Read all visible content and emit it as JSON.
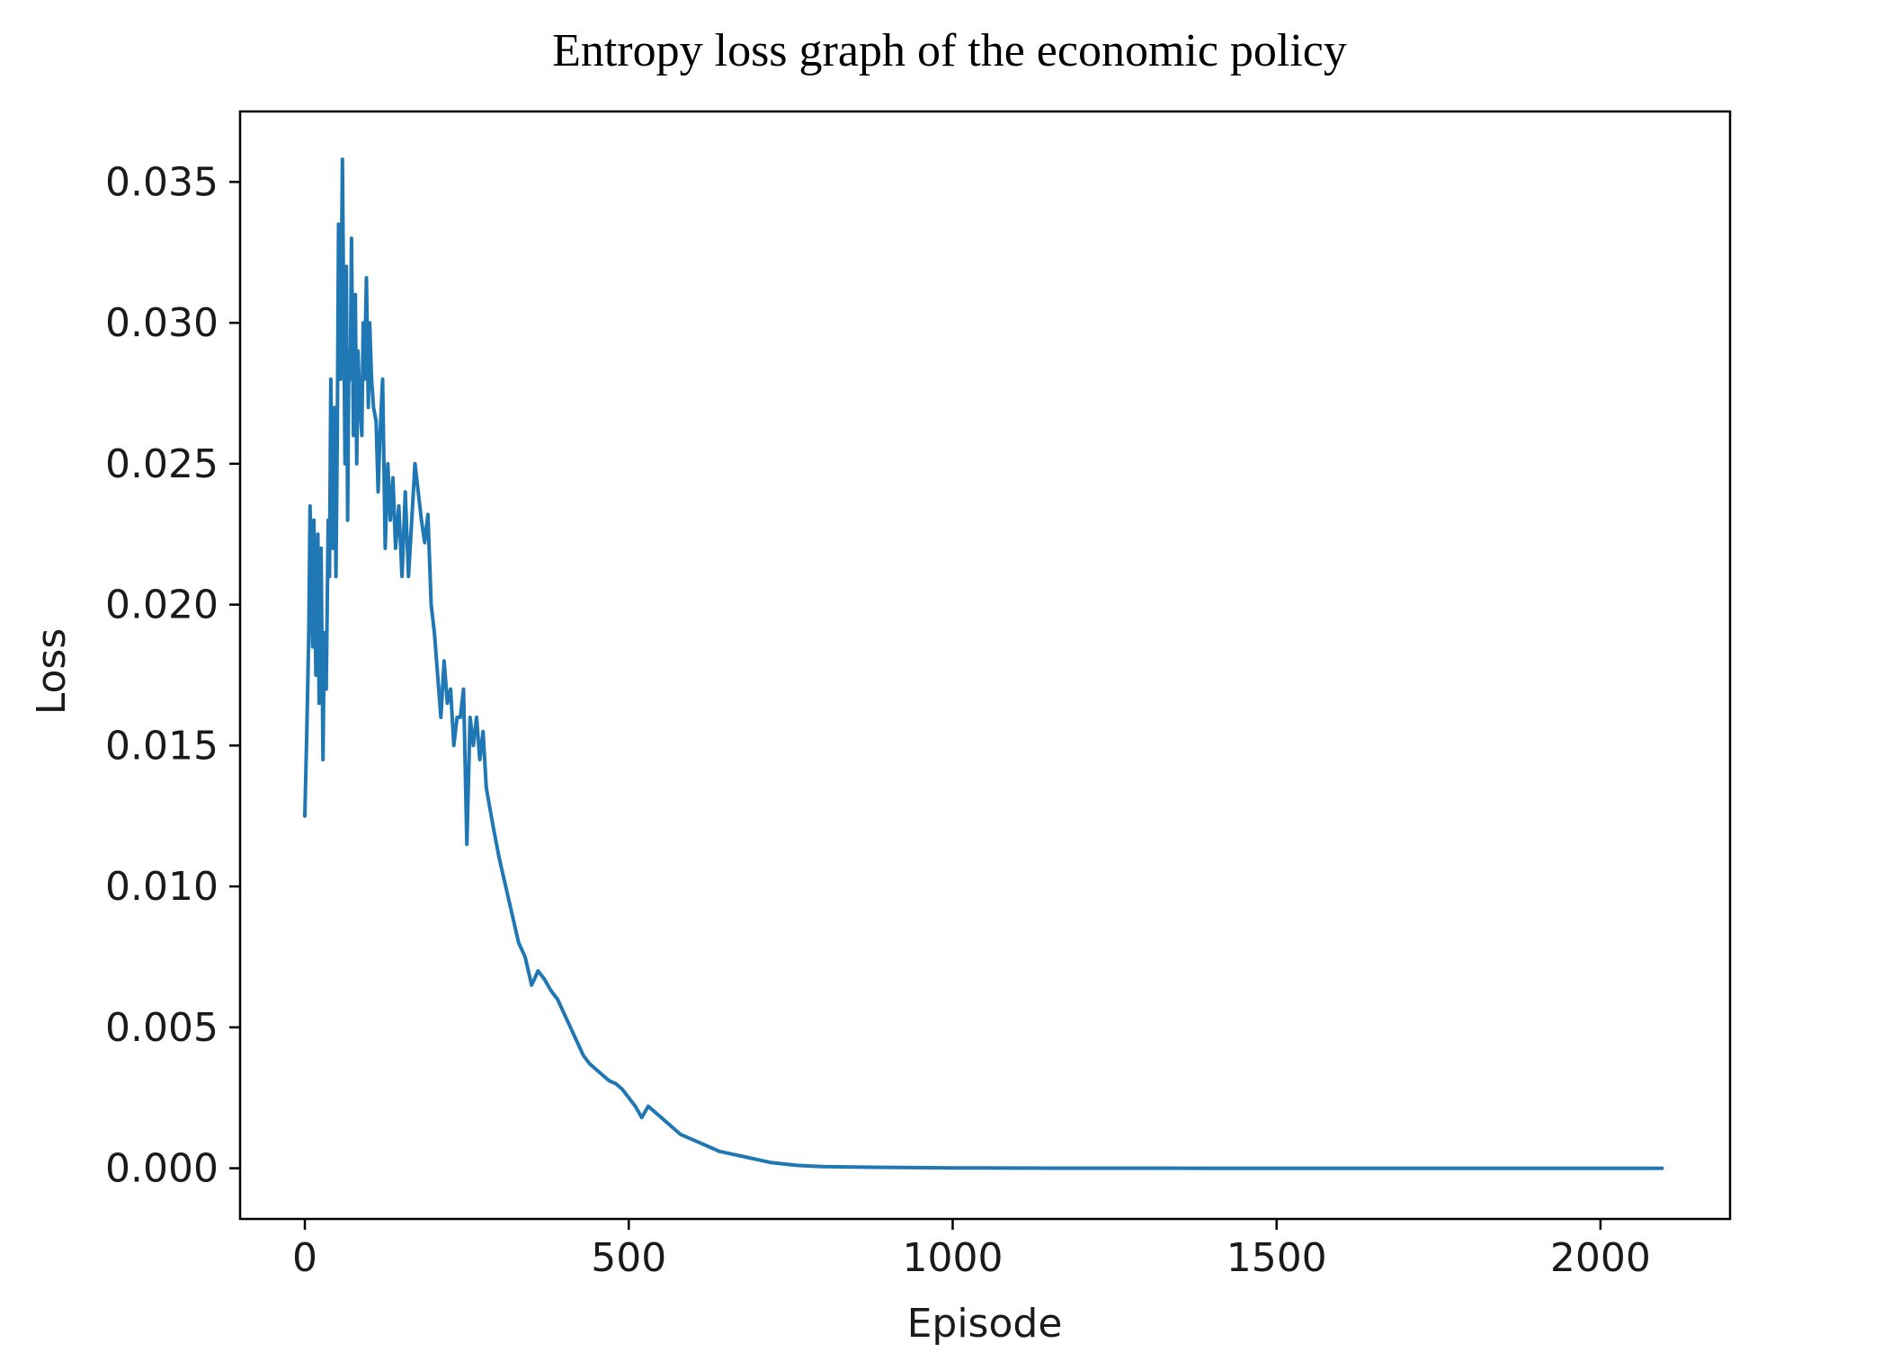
{
  "chart_data": {
    "type": "line",
    "title": "Entropy loss graph of the economic policy",
    "xlabel": "Episode",
    "ylabel": "Loss",
    "xlim": [
      -100,
      2200
    ],
    "ylim": [
      -0.0018,
      0.0375
    ],
    "xticks": [
      0,
      500,
      1000,
      1500,
      2000
    ],
    "yticks": [
      0.0,
      0.005,
      0.01,
      0.015,
      0.02,
      0.025,
      0.03,
      0.035
    ],
    "xtick_labels": [
      "0",
      "500",
      "1000",
      "1500",
      "2000"
    ],
    "ytick_labels": [
      "0.000",
      "0.005",
      "0.010",
      "0.015",
      "0.020",
      "0.025",
      "0.030",
      "0.035"
    ],
    "grid": false,
    "line_color": "#1f77b4",
    "series": [
      {
        "x": [
          0,
          3,
          6,
          8,
          10,
          12,
          14,
          17,
          20,
          22,
          25,
          28,
          30,
          33,
          36,
          38,
          40,
          43,
          46,
          48,
          50,
          52,
          55,
          58,
          60,
          62,
          64,
          66,
          68,
          70,
          72,
          75,
          78,
          80,
          82,
          85,
          88,
          90,
          92,
          95,
          98,
          100,
          103,
          106,
          110,
          113,
          116,
          120,
          124,
          128,
          132,
          136,
          140,
          145,
          150,
          155,
          160,
          165,
          170,
          175,
          180,
          185,
          190,
          195,
          200,
          205,
          210,
          215,
          220,
          225,
          230,
          235,
          240,
          245,
          250,
          255,
          260,
          265,
          270,
          275,
          280,
          290,
          300,
          310,
          320,
          330,
          340,
          350,
          360,
          370,
          380,
          390,
          400,
          410,
          420,
          430,
          440,
          450,
          460,
          470,
          480,
          490,
          500,
          510,
          520,
          530,
          540,
          550,
          560,
          570,
          580,
          600,
          620,
          640,
          660,
          680,
          700,
          720,
          740,
          760,
          780,
          800,
          850,
          900,
          950,
          1000,
          1050,
          1100,
          1150,
          1200,
          1300,
          1400,
          1500,
          1600,
          1700,
          1800,
          1900,
          2000,
          2095
        ],
        "y": [
          0.0125,
          0.0155,
          0.019,
          0.0235,
          0.0215,
          0.0185,
          0.023,
          0.0175,
          0.0225,
          0.0165,
          0.022,
          0.0145,
          0.019,
          0.017,
          0.023,
          0.021,
          0.028,
          0.022,
          0.027,
          0.021,
          0.026,
          0.0335,
          0.028,
          0.0358,
          0.03,
          0.025,
          0.032,
          0.023,
          0.029,
          0.028,
          0.033,
          0.026,
          0.031,
          0.025,
          0.029,
          0.027,
          0.026,
          0.03,
          0.028,
          0.0316,
          0.027,
          0.03,
          0.028,
          0.027,
          0.0265,
          0.024,
          0.026,
          0.028,
          0.022,
          0.025,
          0.023,
          0.0245,
          0.022,
          0.0235,
          0.021,
          0.024,
          0.021,
          0.023,
          0.025,
          0.024,
          0.023,
          0.0222,
          0.0232,
          0.02,
          0.019,
          0.0175,
          0.016,
          0.018,
          0.0165,
          0.017,
          0.015,
          0.016,
          0.016,
          0.017,
          0.0115,
          0.016,
          0.015,
          0.016,
          0.0145,
          0.0155,
          0.0135,
          0.0122,
          0.011,
          0.01,
          0.009,
          0.008,
          0.0075,
          0.0065,
          0.007,
          0.0067,
          0.0063,
          0.006,
          0.0055,
          0.005,
          0.0045,
          0.004,
          0.0037,
          0.0035,
          0.0033,
          0.0031,
          0.003,
          0.0028,
          0.0025,
          0.0022,
          0.0018,
          0.0022,
          0.002,
          0.0018,
          0.0016,
          0.0014,
          0.0012,
          0.001,
          0.0008,
          0.0006,
          0.0005,
          0.0004,
          0.0003,
          0.0002,
          0.00015,
          0.0001,
          8e-05,
          6e-05,
          4e-05,
          3e-05,
          2e-05,
          1e-05,
          1e-05,
          5e-06,
          3e-06,
          2e-06,
          1e-06,
          5e-07,
          0.0,
          0.0,
          0.0,
          0.0,
          0.0,
          0.0,
          0.0
        ]
      }
    ]
  }
}
